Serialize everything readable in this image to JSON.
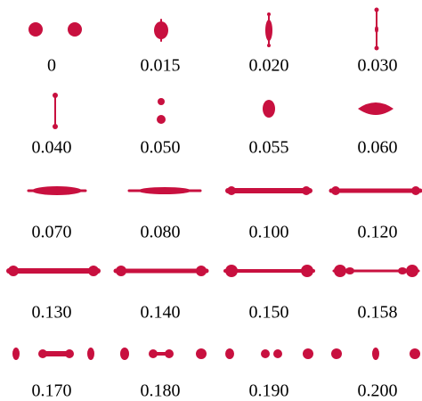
{
  "panels": [
    {
      "label": "0"
    },
    {
      "label": "0.015"
    },
    {
      "label": "0.020"
    },
    {
      "label": "0.030"
    },
    {
      "label": "0.040"
    },
    {
      "label": "0.050"
    },
    {
      "label": "0.055"
    },
    {
      "label": "0.060"
    },
    {
      "label": "0.070"
    },
    {
      "label": "0.080"
    },
    {
      "label": "0.100"
    },
    {
      "label": "0.120"
    },
    {
      "label": "0.130"
    },
    {
      "label": "0.140"
    },
    {
      "label": "0.150"
    },
    {
      "label": "0.158"
    },
    {
      "label": "0.170"
    },
    {
      "label": "0.180"
    },
    {
      "label": "0.190"
    },
    {
      "label": "0.200"
    }
  ]
}
